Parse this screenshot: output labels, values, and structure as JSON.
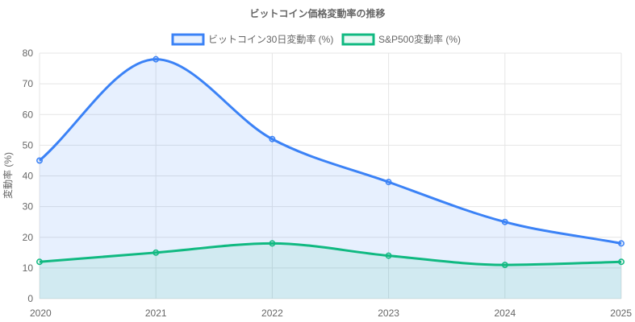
{
  "chart_data": {
    "type": "area",
    "title": "ビットコイン価格変動率の推移",
    "ylabel": "変動率 (%)",
    "xlabel": "",
    "x": [
      "2020",
      "2021",
      "2022",
      "2023",
      "2024",
      "2025"
    ],
    "ylim": [
      0,
      80
    ],
    "y_ticks": [
      0,
      10,
      20,
      30,
      40,
      50,
      60,
      70,
      80
    ],
    "grid": true,
    "legend_position": "top",
    "series": [
      {
        "name": "ビットコイン30日変動率 (%)",
        "values": [
          45,
          78,
          52,
          38,
          25,
          18
        ],
        "color": "#3b82f6",
        "fill": "rgba(59,130,246,0.12)"
      },
      {
        "name": "S&P500変動率 (%)",
        "values": [
          12,
          15,
          18,
          14,
          11,
          12
        ],
        "color": "#10b981",
        "fill": "rgba(16,185,129,0.10)"
      }
    ]
  }
}
